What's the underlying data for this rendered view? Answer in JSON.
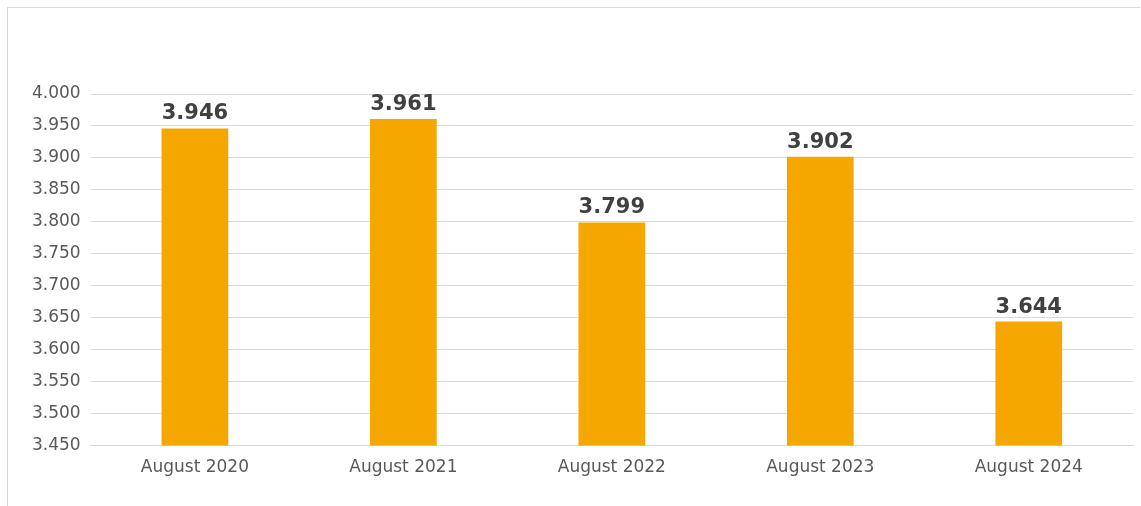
{
  "chart_data": {
    "type": "bar",
    "categories": [
      "August 2020",
      "August 2021",
      "August 2022",
      "August 2023",
      "August 2024"
    ],
    "values": [
      3.946,
      3.961,
      3.799,
      3.902,
      3.644
    ],
    "color": "#f5a700",
    "ylim": [
      3.45,
      4.0
    ],
    "yticks": [
      {
        "value": 3.45,
        "label": "3.450"
      },
      {
        "value": 3.5,
        "label": "3.500"
      },
      {
        "value": 3.55,
        "label": "3.550"
      },
      {
        "value": 3.6,
        "label": "3.600"
      },
      {
        "value": 3.65,
        "label": "3.650"
      },
      {
        "value": 3.7,
        "label": "3.700"
      },
      {
        "value": 3.75,
        "label": "3.750"
      },
      {
        "value": 3.8,
        "label": "3.800"
      },
      {
        "value": 3.85,
        "label": "3.850"
      },
      {
        "value": 3.9,
        "label": "3.900"
      },
      {
        "value": 3.95,
        "label": "3.950"
      },
      {
        "value": 4.0,
        "label": "4.000"
      }
    ],
    "grid": "y",
    "data_labels": true
  }
}
